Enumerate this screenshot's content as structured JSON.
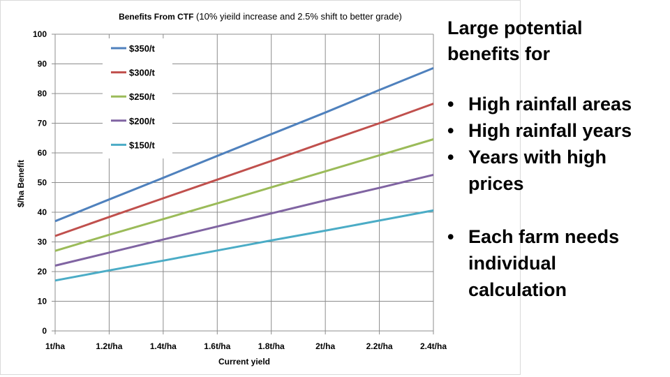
{
  "slide": {
    "heading": "Large potential benefits for",
    "bullets": [
      "High rainfall areas",
      "High rainfall years",
      "Years  with high prices"
    ],
    "bullets2": [
      "Each farm needs individual calculation"
    ],
    "bullet_symbol": "•"
  },
  "chart_data": {
    "type": "line",
    "title_bold": "Benefits From CTF",
    "title_rest": " (10% yieild increase and 2.5% shift to better grade)",
    "xlabel": "Current yield",
    "ylabel": "$/ha Benefit",
    "categories": [
      "1t/ha",
      "1.2t/ha",
      "1.4t/ha",
      "1.6t/ha",
      "1.8t/ha",
      "2t/ha",
      "2.2t/ha",
      "2.4t/ha"
    ],
    "x": [
      1.0,
      1.2,
      1.4,
      1.6,
      1.8,
      2.0,
      2.2,
      2.4
    ],
    "ylim": [
      0,
      100
    ],
    "yticks": [
      "0",
      "10",
      "20",
      "30",
      "40",
      "50",
      "60",
      "70",
      "80",
      "90",
      "100"
    ],
    "grid": true,
    "legend_position": "top-left",
    "series": [
      {
        "name": "$350/t",
        "color": "#4f81bd",
        "values": [
          37,
          44.3,
          51.6,
          59,
          66.3,
          73.6,
          81.2,
          88.6
        ]
      },
      {
        "name": "$300/t",
        "color": "#c0504d",
        "values": [
          32,
          38.4,
          44.7,
          51,
          57.3,
          63.7,
          70,
          76.6
        ]
      },
      {
        "name": "$250/t",
        "color": "#9bbb59",
        "values": [
          27,
          32.4,
          37.7,
          43,
          48.4,
          53.8,
          59.2,
          64.6
        ]
      },
      {
        "name": "$200/t",
        "color": "#8064a2",
        "values": [
          22,
          26.4,
          30.8,
          35.2,
          39.6,
          44,
          48.2,
          52.6
        ]
      },
      {
        "name": "$150/t",
        "color": "#4bacc6",
        "values": [
          17,
          20.4,
          23.7,
          27.1,
          30.5,
          33.8,
          37.2,
          40.6
        ]
      }
    ]
  }
}
